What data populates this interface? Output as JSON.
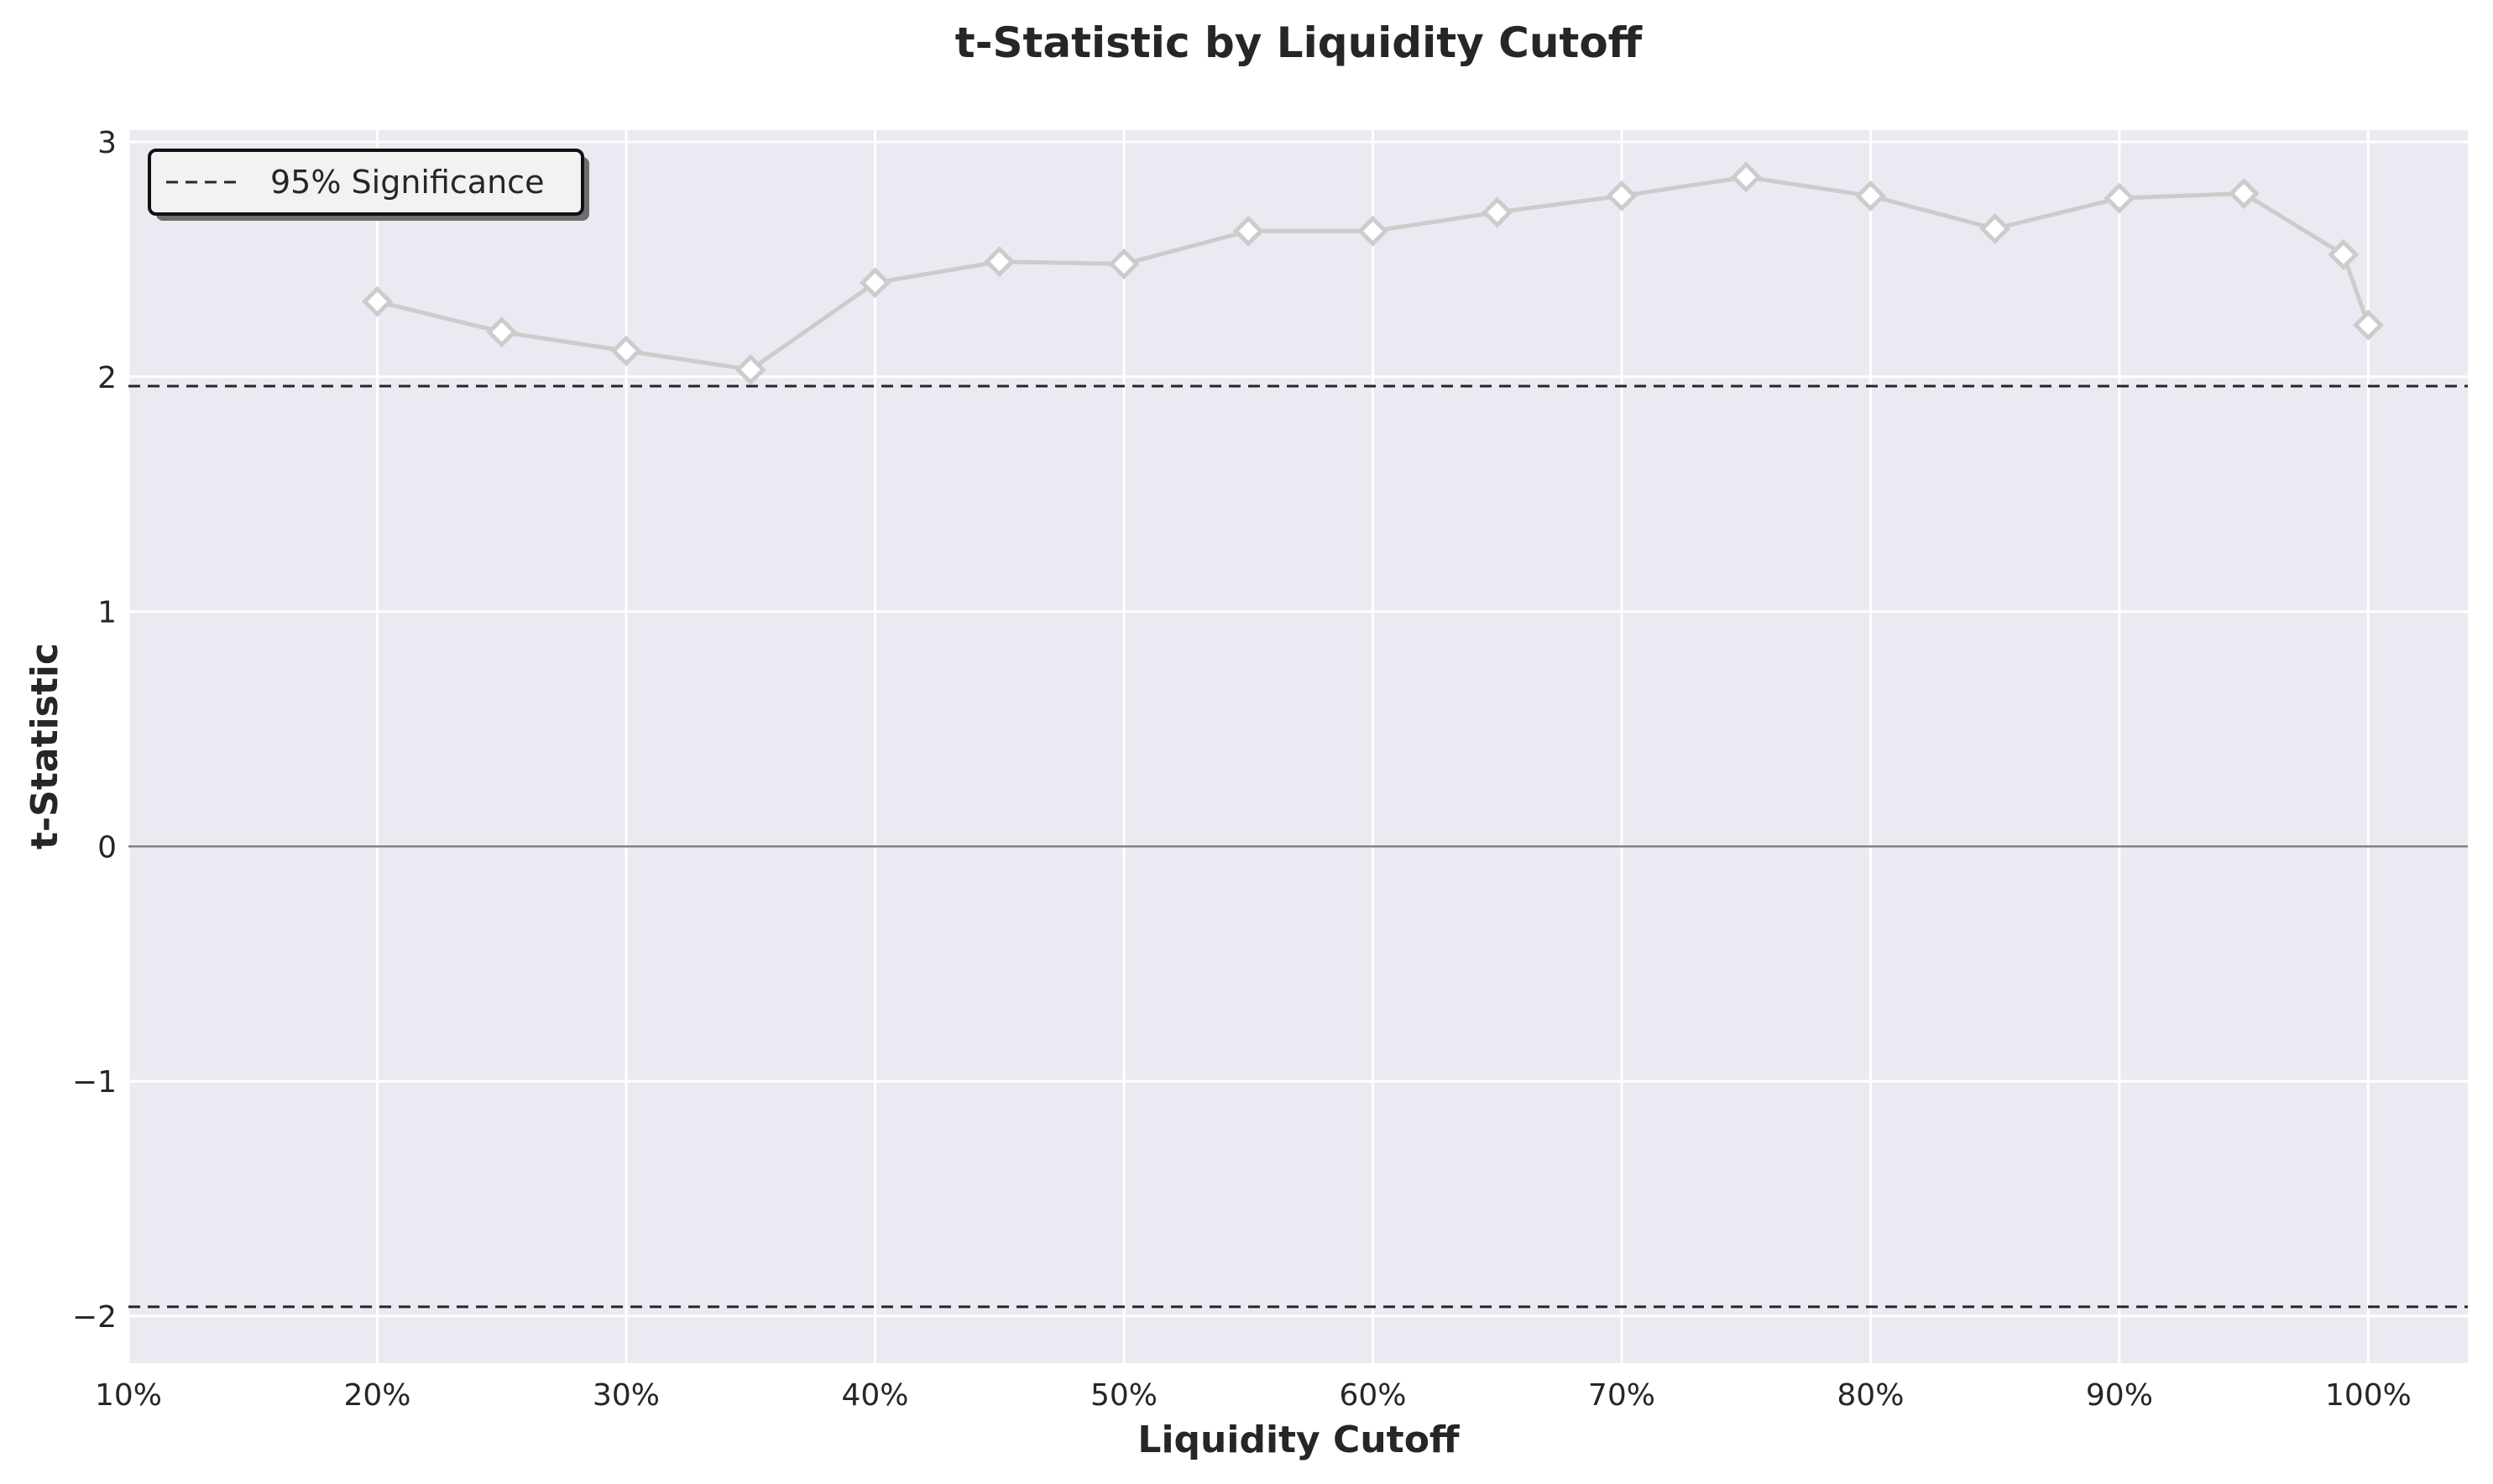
{
  "chart_data": {
    "type": "line",
    "title": "t-Statistic by Liquidity Cutoff",
    "xlabel": "Liquidity Cutoff",
    "ylabel": "t-Statistic",
    "xlim": [
      10,
      104
    ],
    "ylim": [
      -2.2,
      3.05
    ],
    "xticks": [
      10,
      20,
      30,
      40,
      50,
      60,
      70,
      80,
      90,
      100
    ],
    "xtick_labels": [
      "10%",
      "20%",
      "30%",
      "40%",
      "50%",
      "60%",
      "70%",
      "80%",
      "90%",
      "100%"
    ],
    "yticks": [
      -2,
      -1,
      0,
      1,
      2,
      3
    ],
    "ytick_labels": [
      "−2",
      "−1",
      "0",
      "1",
      "2",
      "3"
    ],
    "grid": true,
    "legend_position": "top-left",
    "colors": {
      "background": "#eaeaf2",
      "grid": "#ffffff",
      "series": "#cccccc",
      "marker_fill": "#ffffff",
      "significance_line": "#262626",
      "zero_line": "#808080"
    },
    "series": [
      {
        "x": [
          20,
          25,
          30,
          35,
          40,
          45,
          50,
          55,
          60,
          65,
          70,
          75,
          80,
          85,
          90,
          95,
          99,
          100
        ],
        "y": [
          2.32,
          2.19,
          2.11,
          2.03,
          2.4,
          2.49,
          2.48,
          2.62,
          2.62,
          2.7,
          2.77,
          2.85,
          2.77,
          2.63,
          2.76,
          2.78,
          2.52,
          2.22
        ],
        "marker": "diamond"
      }
    ],
    "reference_lines": [
      {
        "name": "95% Significance",
        "y": 1.96,
        "style": "dashed"
      },
      {
        "y": -1.96,
        "style": "dashed"
      },
      {
        "y": 0,
        "style": "solid"
      }
    ]
  }
}
